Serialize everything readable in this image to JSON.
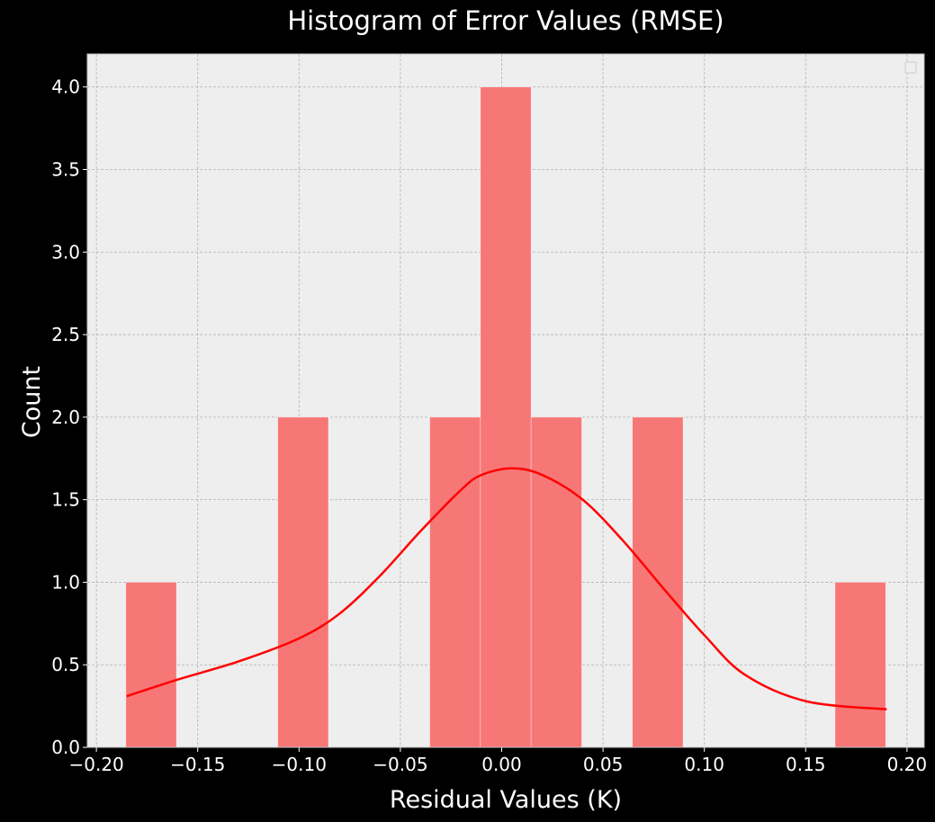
{
  "chart_data": {
    "type": "bar",
    "title": "Histogram of Error Values (RMSE)",
    "xlabel": "Residual Values (K)",
    "ylabel": "Count",
    "xlim": [
      -0.2045,
      0.2085
    ],
    "ylim": [
      0,
      4.2
    ],
    "xticks": [
      -0.2,
      -0.15,
      -0.1,
      -0.05,
      0.0,
      0.05,
      0.1,
      0.15,
      0.2
    ],
    "xtick_labels": [
      "−0.20",
      "−0.15",
      "−0.10",
      "−0.05",
      "0.00",
      "0.05",
      "0.10",
      "0.15",
      "0.20"
    ],
    "yticks": [
      0.0,
      0.5,
      1.0,
      1.5,
      2.0,
      2.5,
      3.0,
      3.5,
      4.0
    ],
    "ytick_labels": [
      "0.0",
      "0.5",
      "1.0",
      "1.5",
      "2.0",
      "2.5",
      "3.0",
      "3.5",
      "4.0"
    ],
    "grid": true,
    "legend": "top-right (empty)",
    "bins": [
      {
        "x0": -0.1855,
        "x1": -0.1605,
        "count": 1
      },
      {
        "x0": -0.1105,
        "x1": -0.0855,
        "count": 2
      },
      {
        "x0": -0.0355,
        "x1": -0.0105,
        "count": 2
      },
      {
        "x0": -0.0105,
        "x1": 0.0145,
        "count": 4
      },
      {
        "x0": 0.0145,
        "x1": 0.0395,
        "count": 2
      },
      {
        "x0": 0.0645,
        "x1": 0.0895,
        "count": 2
      },
      {
        "x0": 0.1645,
        "x1": 0.1895,
        "count": 1
      }
    ],
    "kde": {
      "x": [
        -0.185,
        -0.16,
        -0.13,
        -0.1,
        -0.08,
        -0.06,
        -0.04,
        -0.02,
        -0.01,
        0.005,
        0.02,
        0.04,
        0.06,
        0.08,
        0.1,
        0.12,
        0.15,
        0.19
      ],
      "y": [
        0.31,
        0.41,
        0.52,
        0.66,
        0.81,
        1.04,
        1.31,
        1.56,
        1.65,
        1.69,
        1.65,
        1.5,
        1.25,
        0.96,
        0.68,
        0.44,
        0.28,
        0.23
      ]
    },
    "colors": {
      "bar": "#f77777",
      "kde": "#ff0000",
      "plot_background": "#eeeeee",
      "figure_background": "#000000",
      "grid": "#b2b2b2"
    }
  }
}
